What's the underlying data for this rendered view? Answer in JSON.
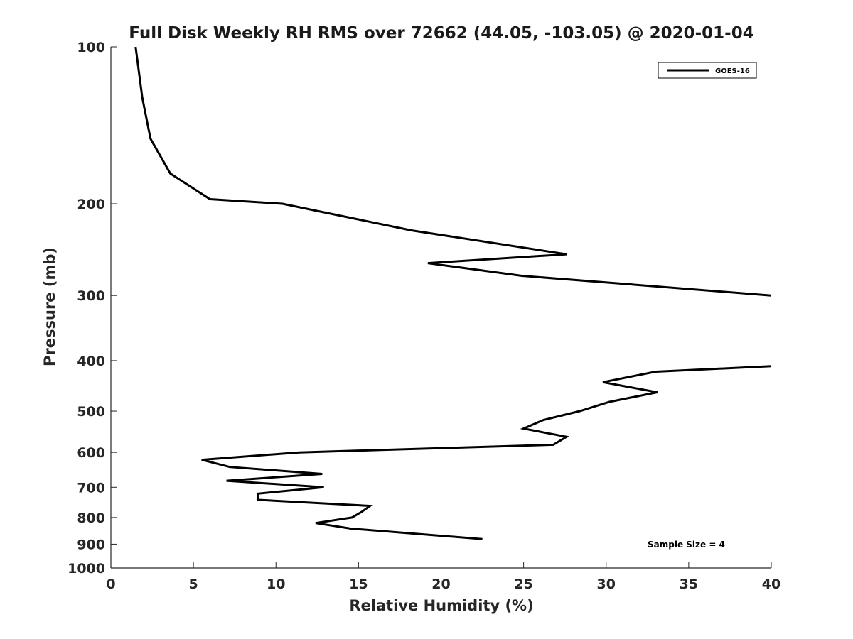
{
  "chart_data": {
    "type": "line",
    "title": "Full Disk Weekly RH RMS over 72662 (44.05, -103.05) @ 2020-01-04",
    "xlabel": "Relative Humidity (%)",
    "ylabel": "Pressure (mb)",
    "xlim": [
      0,
      40
    ],
    "ylim": [
      100,
      1000
    ],
    "yscale": "log",
    "y_reversed": true,
    "xticks": [
      0,
      5,
      10,
      15,
      20,
      25,
      30,
      35,
      40
    ],
    "yticks": [
      100,
      200,
      300,
      400,
      500,
      600,
      700,
      800,
      900,
      1000
    ],
    "grid": false,
    "legend_position": "top-right",
    "annotation": "Sample Size = 4",
    "series": [
      {
        "name": "GOES-16",
        "color": "#000000",
        "segments": [
          {
            "x": [
              1.5,
              1.9,
              2.4,
              3.6,
              6.0,
              10.4,
              18.2,
              27.6,
              19.2,
              24.9,
              40.0
            ],
            "y": [
              100,
              125,
              150,
              175,
              196,
              200,
              225,
              250,
              260,
              275,
              300
            ]
          },
          {
            "x": [
              40.0,
              33.0,
              29.8,
              33.1,
              30.2,
              28.4,
              26.2,
              25.0,
              27.6,
              26.8,
              11.4,
              5.5,
              7.2,
              12.8,
              7.0,
              12.9,
              8.9,
              8.9,
              15.7,
              15.2,
              14.6,
              12.4,
              14.5,
              22.5
            ],
            "y": [
              410,
              420,
              440,
              460,
              480,
              500,
              520,
              540,
              560,
              580,
              600,
              620,
              640,
              660,
              680,
              700,
              720,
              740,
              760,
              780,
              800,
              820,
              840,
              880
            ]
          }
        ]
      }
    ]
  }
}
